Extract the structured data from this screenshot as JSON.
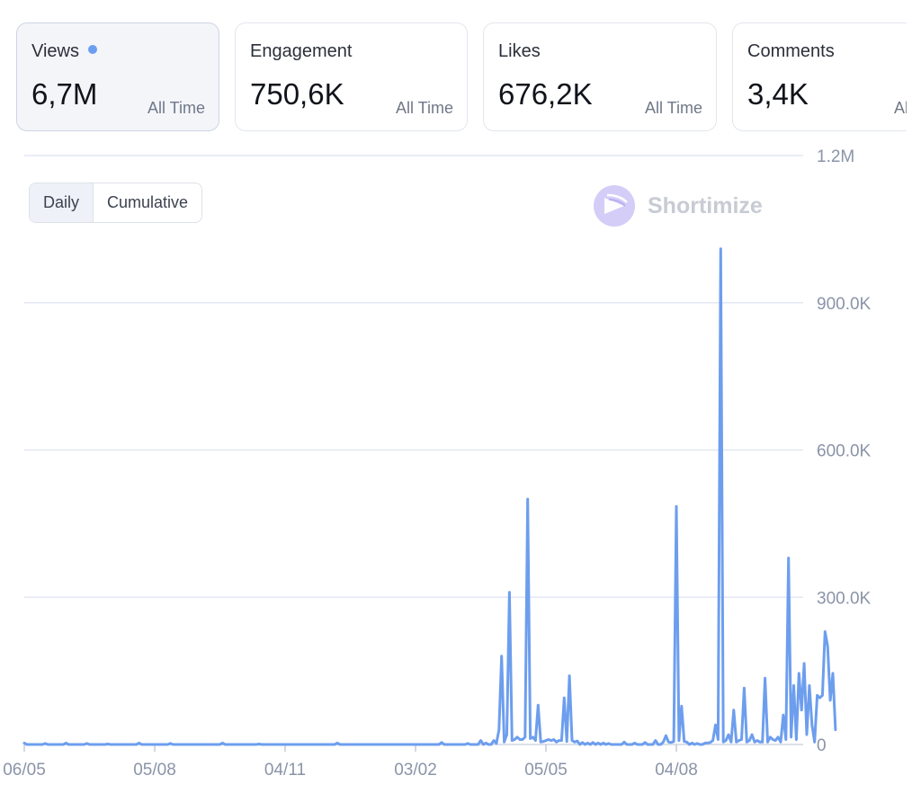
{
  "cards": [
    {
      "label": "Views",
      "value": "6,7M",
      "period": "All Time",
      "active": true
    },
    {
      "label": "Engagement",
      "value": "750,6K",
      "period": "All Time",
      "active": false
    },
    {
      "label": "Likes",
      "value": "676,2K",
      "period": "All Time",
      "active": false
    },
    {
      "label": "Comments",
      "value": "3,4K",
      "period": "All Time",
      "active": false
    }
  ],
  "toggle": {
    "daily": "Daily",
    "cumulative": "Cumulative",
    "selected": "Daily"
  },
  "watermark": "Shortimize",
  "colors": {
    "line": "#6d9eee",
    "grid": "#e3e7f3",
    "axis_text": "#8a94a8",
    "dot": "#6b9ef0"
  },
  "chart_data": {
    "type": "line",
    "ylim": [
      0,
      1200000
    ],
    "y_ticks": [
      {
        "value": 0,
        "label": "0"
      },
      {
        "value": 300000,
        "label": "300.0K"
      },
      {
        "value": 600000,
        "label": "600.0K"
      },
      {
        "value": 900000,
        "label": "900.0K"
      },
      {
        "value": 1200000,
        "label": "1.2M"
      }
    ],
    "x_tick_labels": [
      "06/05",
      "05/08",
      "04/11",
      "03/02",
      "05/05",
      "04/08"
    ],
    "x_tick_index": [
      0,
      50,
      100,
      150,
      200,
      250
    ],
    "n_points": 300,
    "values": [
      [
        0,
        3000
      ],
      [
        8,
        2000
      ],
      [
        16,
        3000
      ],
      [
        24,
        2000
      ],
      [
        32,
        1000
      ],
      [
        44,
        3000
      ],
      [
        56,
        2000
      ],
      [
        76,
        3000
      ],
      [
        90,
        1000
      ],
      [
        120,
        3000
      ],
      [
        160,
        4000
      ],
      [
        170,
        2000
      ],
      [
        175,
        8000
      ],
      [
        177,
        3000
      ],
      [
        180,
        8000
      ],
      [
        181,
        2000
      ],
      [
        182,
        30000
      ],
      [
        183,
        180000
      ],
      [
        184,
        5000
      ],
      [
        185,
        20000
      ],
      [
        186,
        310000
      ],
      [
        187,
        8000
      ],
      [
        188,
        10000
      ],
      [
        189,
        15000
      ],
      [
        190,
        10000
      ],
      [
        191,
        10000
      ],
      [
        192,
        15000
      ],
      [
        193,
        500000
      ],
      [
        194,
        12000
      ],
      [
        195,
        15000
      ],
      [
        196,
        8000
      ],
      [
        197,
        80000
      ],
      [
        198,
        5000
      ],
      [
        199,
        6000
      ],
      [
        200,
        8000
      ],
      [
        201,
        10000
      ],
      [
        202,
        8000
      ],
      [
        203,
        10000
      ],
      [
        204,
        5000
      ],
      [
        205,
        8000
      ],
      [
        206,
        8000
      ],
      [
        207,
        95000
      ],
      [
        208,
        6000
      ],
      [
        209,
        140000
      ],
      [
        210,
        8000
      ],
      [
        211,
        5000
      ],
      [
        212,
        7000
      ],
      [
        214,
        4000
      ],
      [
        216,
        3000
      ],
      [
        218,
        4000
      ],
      [
        220,
        3000
      ],
      [
        222,
        3000
      ],
      [
        224,
        2000
      ],
      [
        230,
        5000
      ],
      [
        234,
        3000
      ],
      [
        238,
        4000
      ],
      [
        242,
        8000
      ],
      [
        245,
        5000
      ],
      [
        246,
        18000
      ],
      [
        247,
        5000
      ],
      [
        248,
        4000
      ],
      [
        249,
        6000
      ],
      [
        250,
        485000
      ],
      [
        251,
        8000
      ],
      [
        252,
        78000
      ],
      [
        253,
        6000
      ],
      [
        254,
        5000
      ],
      [
        256,
        3000
      ],
      [
        258,
        2000
      ],
      [
        261,
        3000
      ],
      [
        262,
        3000
      ],
      [
        263,
        4000
      ],
      [
        264,
        8000
      ],
      [
        265,
        40000
      ],
      [
        266,
        10000
      ],
      [
        267,
        1010000
      ],
      [
        268,
        5000
      ],
      [
        269,
        8000
      ],
      [
        270,
        20000
      ],
      [
        271,
        5000
      ],
      [
        272,
        70000
      ],
      [
        273,
        5000
      ],
      [
        274,
        8000
      ],
      [
        275,
        10000
      ],
      [
        276,
        115000
      ],
      [
        277,
        5000
      ],
      [
        278,
        8000
      ],
      [
        279,
        20000
      ],
      [
        280,
        5000
      ],
      [
        281,
        8000
      ],
      [
        282,
        5000
      ],
      [
        283,
        5000
      ],
      [
        284,
        135000
      ],
      [
        285,
        5000
      ],
      [
        286,
        15000
      ],
      [
        287,
        10000
      ],
      [
        288,
        8000
      ],
      [
        289,
        15000
      ],
      [
        290,
        5000
      ],
      [
        291,
        60000
      ],
      [
        292,
        10000
      ],
      [
        293,
        380000
      ],
      [
        294,
        15000
      ],
      [
        295,
        120000
      ],
      [
        296,
        10000
      ],
      [
        297,
        145000
      ],
      [
        298,
        70000
      ],
      [
        299,
        165000
      ],
      [
        300,
        20000
      ],
      [
        301,
        120000
      ],
      [
        302,
        40000
      ],
      [
        303,
        5000
      ],
      [
        304,
        100000
      ],
      [
        305,
        95000
      ],
      [
        306,
        100000
      ],
      [
        307,
        230000
      ],
      [
        308,
        200000
      ],
      [
        309,
        90000
      ],
      [
        310,
        145000
      ],
      [
        311,
        30000
      ]
    ]
  }
}
